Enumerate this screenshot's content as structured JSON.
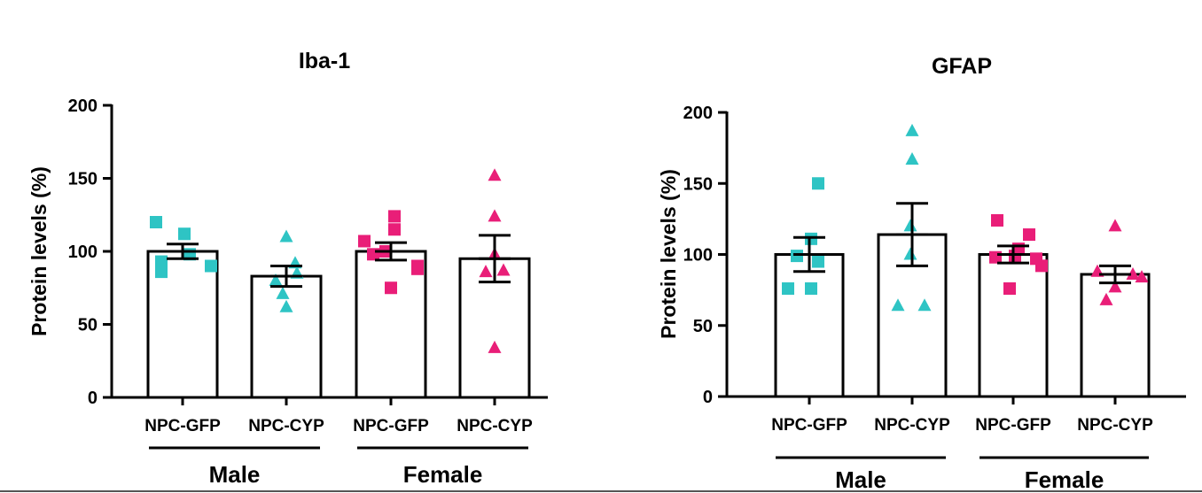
{
  "colors": {
    "male": "#2ec4c4",
    "female": "#e91e78"
  },
  "chart_data": [
    {
      "type": "bar",
      "title": "Iba-1",
      "ylabel": "Protein levels (%)",
      "ylim": [
        0,
        200
      ],
      "yticks": [
        0,
        50,
        100,
        150,
        200
      ],
      "categories": [
        "NPC-GFP",
        "NPC-CYP",
        "NPC-GFP",
        "NPC-CYP"
      ],
      "groups": [
        {
          "label": "Male",
          "categories": [
            0,
            1
          ]
        },
        {
          "label": "Female",
          "categories": [
            2,
            3
          ]
        }
      ],
      "series": [
        {
          "name": "Male NPC-GFP",
          "sex": "male",
          "marker": "square",
          "mean": 100,
          "sem": 5,
          "points": [
            120,
            98,
            93,
            112,
            86,
            90
          ]
        },
        {
          "name": "Male NPC-CYP",
          "sex": "male",
          "marker": "triangle",
          "mean": 83,
          "sem": 7,
          "points": [
            110,
            92,
            80,
            85,
            71,
            62
          ]
        },
        {
          "name": "Female NPC-GFP",
          "sex": "female",
          "marker": "square",
          "mean": 100,
          "sem": 6,
          "points": [
            107,
            124,
            115,
            100,
            88,
            98,
            75,
            90
          ]
        },
        {
          "name": "Female NPC-CYP",
          "sex": "female",
          "marker": "triangle",
          "mean": 95,
          "sem": 16,
          "points": [
            152,
            124,
            87,
            98,
            86,
            34
          ]
        }
      ]
    },
    {
      "type": "bar",
      "title": "GFAP",
      "ylabel": "Protein levels (%)",
      "ylim": [
        0,
        200
      ],
      "yticks": [
        0,
        50,
        100,
        150,
        200
      ],
      "categories": [
        "NPC-GFP",
        "NPC-CYP",
        "NPC-GFP",
        "NPC-CYP"
      ],
      "groups": [
        {
          "label": "Male",
          "categories": [
            0,
            1
          ]
        },
        {
          "label": "Female",
          "categories": [
            2,
            3
          ]
        }
      ],
      "series": [
        {
          "name": "Male NPC-GFP",
          "sex": "male",
          "marker": "square",
          "mean": 100,
          "sem": 12,
          "points": [
            150,
            111,
            99,
            95,
            76,
            76
          ]
        },
        {
          "name": "Male NPC-CYP",
          "sex": "male",
          "marker": "triangle",
          "mean": 114,
          "sem": 22,
          "points": [
            187,
            167,
            120,
            100,
            64,
            64
          ]
        },
        {
          "name": "Female NPC-GFP",
          "sex": "female",
          "marker": "square",
          "mean": 100,
          "sem": 6,
          "points": [
            124,
            114,
            104,
            98,
            99,
            97,
            92,
            76
          ]
        },
        {
          "name": "Female NPC-CYP",
          "sex": "female",
          "marker": "triangle",
          "mean": 86,
          "sem": 6,
          "points": [
            120,
            86,
            88,
            84,
            77,
            68
          ]
        }
      ]
    }
  ]
}
